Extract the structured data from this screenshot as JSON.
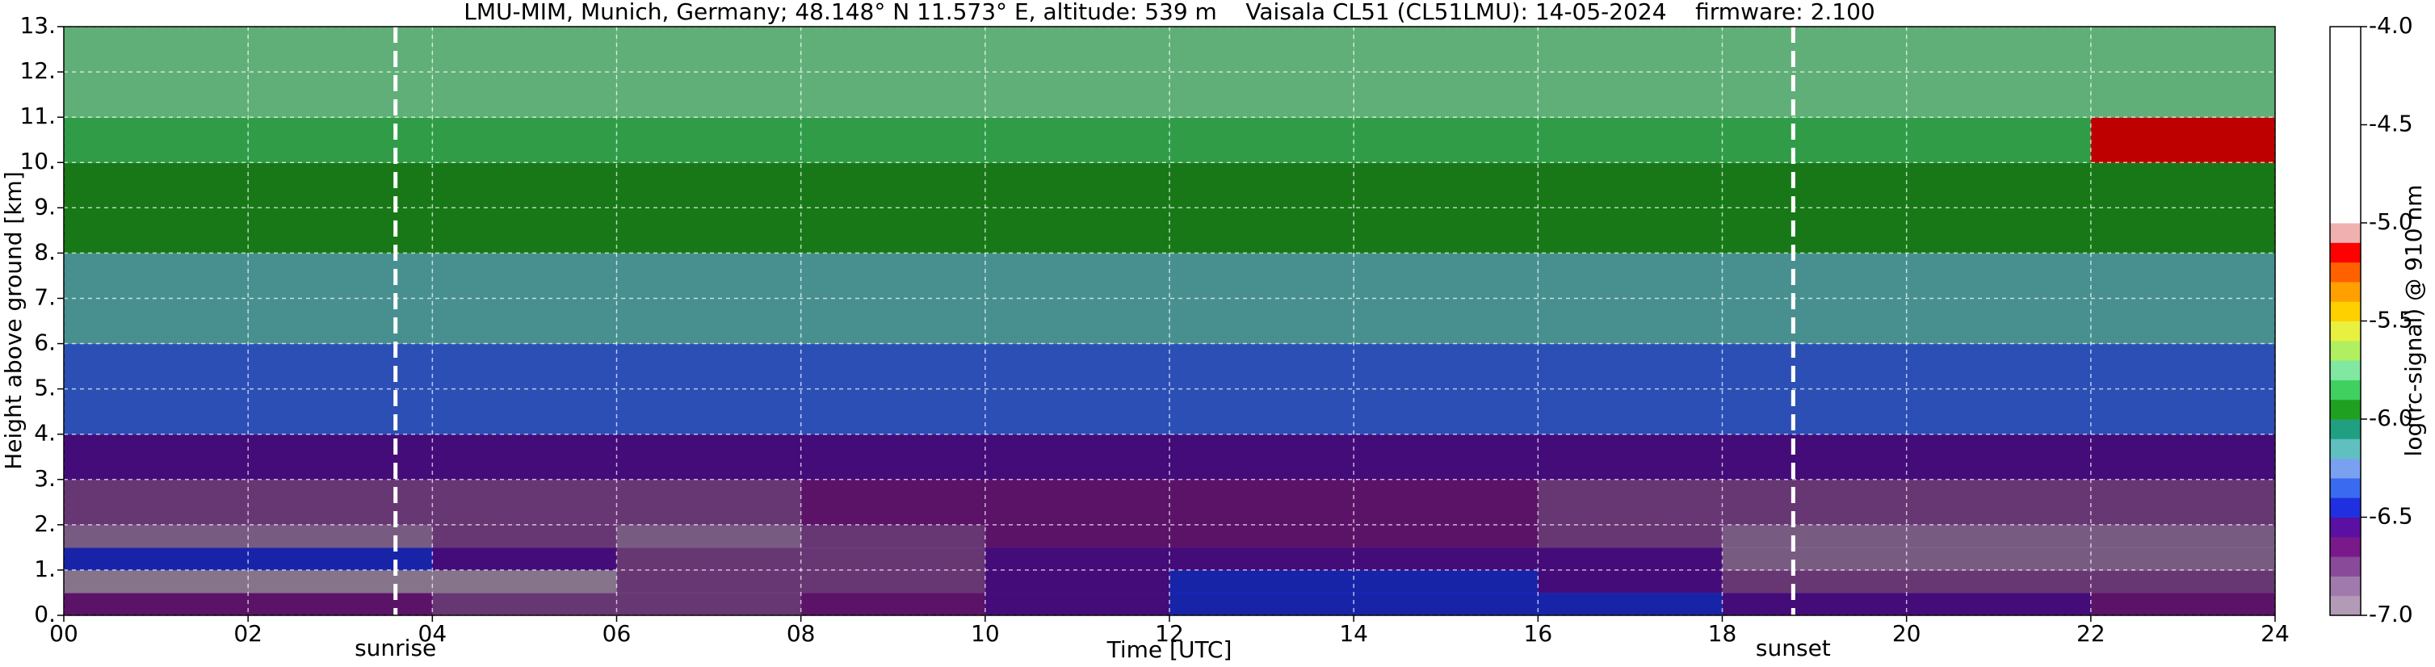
{
  "chart_data": {
    "type": "heatmap",
    "title": "LMU-MIM, Munich, Germany; 48.148° N 11.573° E, altitude: 539 m    Vaisala CL51 (CL51LMU): 14-05-2024    firmware: 2.100",
    "x_label": "Time [UTC]",
    "y_label": "Height above ground [km]",
    "x": [
      0,
      2,
      4,
      6,
      8,
      10,
      12,
      14,
      16,
      18,
      20,
      22,
      24
    ],
    "y": [
      0,
      0.5,
      1,
      1.5,
      2,
      3,
      4,
      6,
      8,
      10,
      11,
      13
    ],
    "values": [
      [
        -6.6,
        -6.6,
        -6.7,
        -6.7,
        -6.6,
        -6.5,
        -6.45,
        -6.45,
        -6.45,
        -6.5,
        -6.55,
        -6.6
      ],
      [
        -6.9,
        -6.9,
        -6.9,
        -6.75,
        -6.7,
        -6.5,
        -6.45,
        -6.45,
        -6.5,
        -6.7,
        -6.7,
        -6.7
      ],
      [
        -6.45,
        -6.45,
        -6.5,
        -6.75,
        -6.75,
        -6.55,
        -6.5,
        -6.5,
        -6.55,
        -6.8,
        -6.8,
        -6.8
      ],
      [
        -6.8,
        -6.8,
        -6.75,
        -6.8,
        -6.7,
        -6.65,
        -6.65,
        -6.65,
        -6.7,
        -6.85,
        -6.85,
        -6.85
      ],
      [
        -6.75,
        -6.75,
        -6.7,
        -6.7,
        -6.65,
        -6.65,
        -6.65,
        -6.65,
        -6.7,
        -6.75,
        -6.75,
        -6.75
      ],
      [
        -6.55,
        -6.55,
        -6.55,
        -6.55,
        -6.55,
        -6.55,
        -6.55,
        -6.55,
        -6.55,
        -6.55,
        -6.55,
        -6.55
      ],
      [
        -6.35,
        -6.35,
        -6.35,
        -6.35,
        -6.35,
        -6.35,
        -6.35,
        -6.35,
        -6.35,
        -6.35,
        -6.35,
        -6.35
      ],
      [
        -6.1,
        -6.1,
        -6.1,
        -6.1,
        -6.1,
        -6.1,
        -6.1,
        -6.1,
        -6.1,
        -6.1,
        -6.1,
        -6.1
      ],
      [
        -5.95,
        -5.95,
        -5.95,
        -5.95,
        -5.95,
        -5.95,
        -5.95,
        -5.95,
        -5.95,
        -5.95,
        -5.95,
        -5.95
      ],
      [
        -5.8,
        -5.8,
        -5.8,
        -5.8,
        -5.8,
        -5.8,
        -5.8,
        -5.8,
        -5.8,
        -5.8,
        -5.8,
        -5.1
      ],
      [
        -5.75,
        -5.75,
        -5.75,
        -5.75,
        -5.75,
        -5.75,
        -5.75,
        -5.75,
        -5.75,
        -5.75,
        -5.75,
        -5.75
      ]
    ],
    "xlim": [
      0,
      24
    ],
    "ylim": [
      0,
      13
    ],
    "xticks": [
      {
        "value": 0,
        "label": "00"
      },
      {
        "value": 2,
        "label": "02"
      },
      {
        "value": 4,
        "label": "04"
      },
      {
        "value": 6,
        "label": "06"
      },
      {
        "value": 8,
        "label": "08"
      },
      10,
      12,
      14,
      16,
      18,
      20,
      22,
      24
    ],
    "yticks": [
      {
        "value": 0,
        "label": "0."
      },
      {
        "value": 1,
        "label": "1."
      },
      {
        "value": 2,
        "label": "2."
      },
      {
        "value": 3,
        "label": "3."
      },
      {
        "value": 4,
        "label": "4."
      },
      {
        "value": 5,
        "label": "5."
      },
      {
        "value": 6,
        "label": "6."
      },
      {
        "value": 7,
        "label": "7."
      },
      {
        "value": 8,
        "label": "8."
      },
      {
        "value": 9,
        "label": "9."
      },
      {
        "value": 10,
        "label": "10."
      },
      {
        "value": 11,
        "label": "11."
      },
      {
        "value": 12,
        "label": "12."
      },
      {
        "value": 13,
        "label": "13."
      }
    ],
    "grid": true,
    "annotations": [
      {
        "x": 3.6,
        "label": "sunrise"
      },
      {
        "x": 18.77,
        "label": "sunset"
      }
    ],
    "colorbar": {
      "label": "log(rc-signal) @ 910 nm",
      "clim": [
        -7,
        -4
      ],
      "bounds": [
        -7,
        -6.9,
        -6.8,
        -6.7,
        -6.6,
        -6.5,
        -6.4,
        -6.3,
        -6.2,
        -6.1,
        -6,
        -5.9,
        -5.8,
        -5.7,
        -5.6,
        -5.5,
        -5.4,
        -5.3,
        -5.2,
        -5.1,
        -5,
        -4
      ],
      "colors": [
        "#b39bb8",
        "#a07aac",
        "#8a4a9a",
        "#7a1a8a",
        "#5a10a0",
        "#2030e0",
        "#3a6af0",
        "#7aa0f0",
        "#60c0c0",
        "#20a080",
        "#20a020",
        "#40d060",
        "#80e8a0",
        "#b0f060",
        "#e8f040",
        "#ffd000",
        "#ffa000",
        "#ff6000",
        "#ff0000",
        "#f0b0b0",
        "#ffffff"
      ],
      "ticks": [
        {
          "value": -4,
          "label": "-4.0"
        },
        {
          "value": -4.5,
          "label": "-4.5"
        },
        {
          "value": -5,
          "label": "-5.0"
        },
        {
          "value": -5.5,
          "label": "-5.5"
        },
        {
          "value": -6,
          "label": "-6.0"
        },
        {
          "value": -6.5,
          "label": "-6.5"
        },
        {
          "value": -7,
          "label": "-7.0"
        }
      ]
    }
  }
}
